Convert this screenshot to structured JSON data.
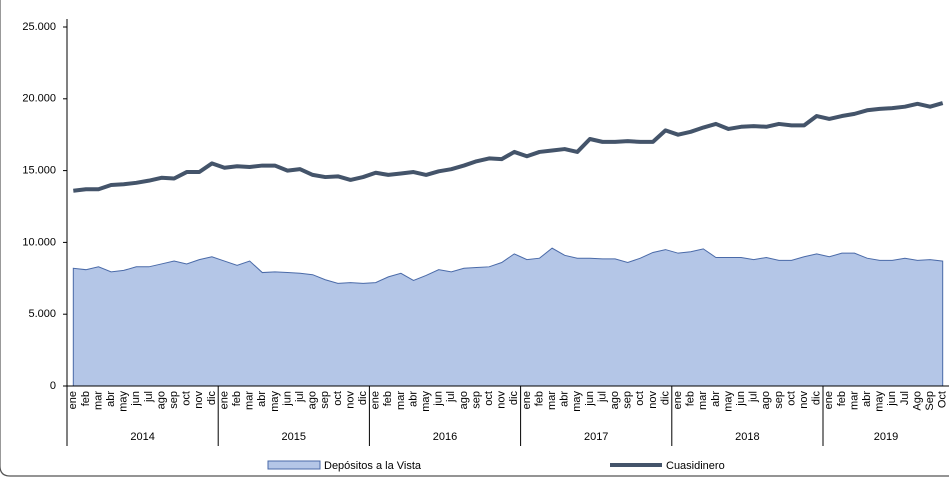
{
  "chart_data": {
    "type": "area-line",
    "categories": [
      "ene",
      "feb",
      "mar",
      "abr",
      "may",
      "jun",
      "jul",
      "ago",
      "sep",
      "oct",
      "nov",
      "dic",
      "ene",
      "feb",
      "mar",
      "abr",
      "may",
      "jun",
      "jul",
      "ago",
      "sep",
      "oct",
      "nov",
      "dic",
      "ene",
      "feb",
      "mar",
      "abr",
      "may",
      "jun",
      "jul",
      "ago",
      "sep",
      "oct",
      "nov",
      "dic",
      "ene",
      "feb",
      "mar",
      "abr",
      "may",
      "jun",
      "jul",
      "ago",
      "sep",
      "oct",
      "nov",
      "dic",
      "ene",
      "feb",
      "mar",
      "abr",
      "may",
      "jun",
      "jul",
      "ago",
      "sep",
      "oct",
      "nov",
      "dic",
      "ene",
      "feb",
      "mar",
      "abr",
      "may",
      "jun",
      "Jul",
      "Ago",
      "Sep",
      "Oct"
    ],
    "groups": [
      {
        "label": "2014",
        "count": 12
      },
      {
        "label": "2015",
        "count": 12
      },
      {
        "label": "2016",
        "count": 12
      },
      {
        "label": "2017",
        "count": 12
      },
      {
        "label": "2018",
        "count": 12
      },
      {
        "label": "2019",
        "count": 10
      }
    ],
    "series": [
      {
        "name": "Depósitos a la Vista",
        "kind": "area",
        "color": "#b4c6e7",
        "edge": "#4a6aa8",
        "values": [
          8200,
          8100,
          8300,
          7950,
          8050,
          8300,
          8300,
          8500,
          8700,
          8500,
          8800,
          9000,
          8700,
          8400,
          8700,
          7900,
          7950,
          7900,
          7850,
          7750,
          7400,
          7150,
          7200,
          7150,
          7200,
          7600,
          7850,
          7350,
          7700,
          8100,
          7950,
          8200,
          8250,
          8300,
          8600,
          9200,
          8800,
          8900,
          9600,
          9100,
          8900,
          8900,
          8850,
          8850,
          8600,
          8900,
          9300,
          9500,
          9250,
          9350,
          9550,
          8950,
          8950,
          8950,
          8800,
          8950,
          8750,
          8750,
          9000,
          9200,
          9000,
          9250,
          9250,
          8900,
          8750,
          8750,
          8900,
          8750,
          8800,
          8700
        ]
      },
      {
        "name": "Cuasidinero",
        "kind": "line",
        "color": "#44546a",
        "values": [
          13600,
          13700,
          13700,
          14000,
          14050,
          14150,
          14300,
          14500,
          14450,
          14900,
          14900,
          15500,
          15200,
          15300,
          15250,
          15350,
          15350,
          15000,
          15100,
          14700,
          14550,
          14600,
          14350,
          14550,
          14850,
          14700,
          14800,
          14900,
          14700,
          14950,
          15100,
          15350,
          15650,
          15850,
          15800,
          16300,
          16000,
          16300,
          16400,
          16500,
          16300,
          17200,
          17000,
          17000,
          17050,
          17000,
          17000,
          17800,
          17500,
          17700,
          18000,
          18250,
          17900,
          18050,
          18100,
          18050,
          18250,
          18150,
          18150,
          18800,
          18600,
          18800,
          18950,
          19200,
          19300,
          19350,
          19450,
          19650,
          19450,
          19700
        ]
      }
    ],
    "ylim": [
      0,
      25000
    ],
    "yticks": [
      0,
      {
        "value": 5000,
        "label": "5.000"
      },
      {
        "value": 10000,
        "label": "10.000"
      },
      {
        "value": 15000,
        "label": "15.000"
      },
      {
        "value": 20000,
        "label": "20.000"
      },
      {
        "value": 25000,
        "label": "25.000"
      }
    ],
    "legend": "bottom"
  }
}
